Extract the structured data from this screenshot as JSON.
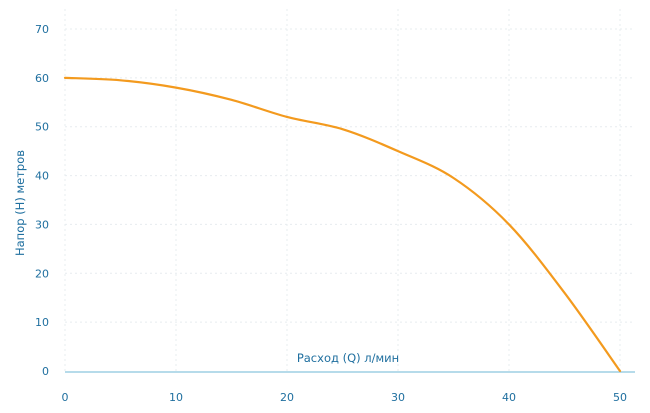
{
  "chart_data": {
    "type": "line",
    "title": "",
    "xlabel": "Расход (Q) л/мин",
    "ylabel": "Напор (H) метров",
    "xlim": [
      0,
      50
    ],
    "ylim": [
      0,
      70
    ],
    "x_ticks": [
      0,
      10,
      20,
      30,
      40,
      50
    ],
    "y_ticks": [
      0,
      10,
      20,
      30,
      40,
      50,
      60,
      70
    ],
    "grid": true,
    "legend": "none",
    "series": [
      {
        "color": "#f39a1e",
        "x": [
          0,
          5,
          10,
          15,
          20,
          25,
          30,
          35,
          40,
          45,
          50
        ],
        "y": [
          60,
          59.5,
          58,
          55.5,
          52,
          49.5,
          45,
          39.5,
          30,
          16,
          0
        ]
      }
    ]
  },
  "colors": {
    "tick_text": "#1f6f9f",
    "axis": "#9ecfe3",
    "grid": "#e7ecef"
  }
}
